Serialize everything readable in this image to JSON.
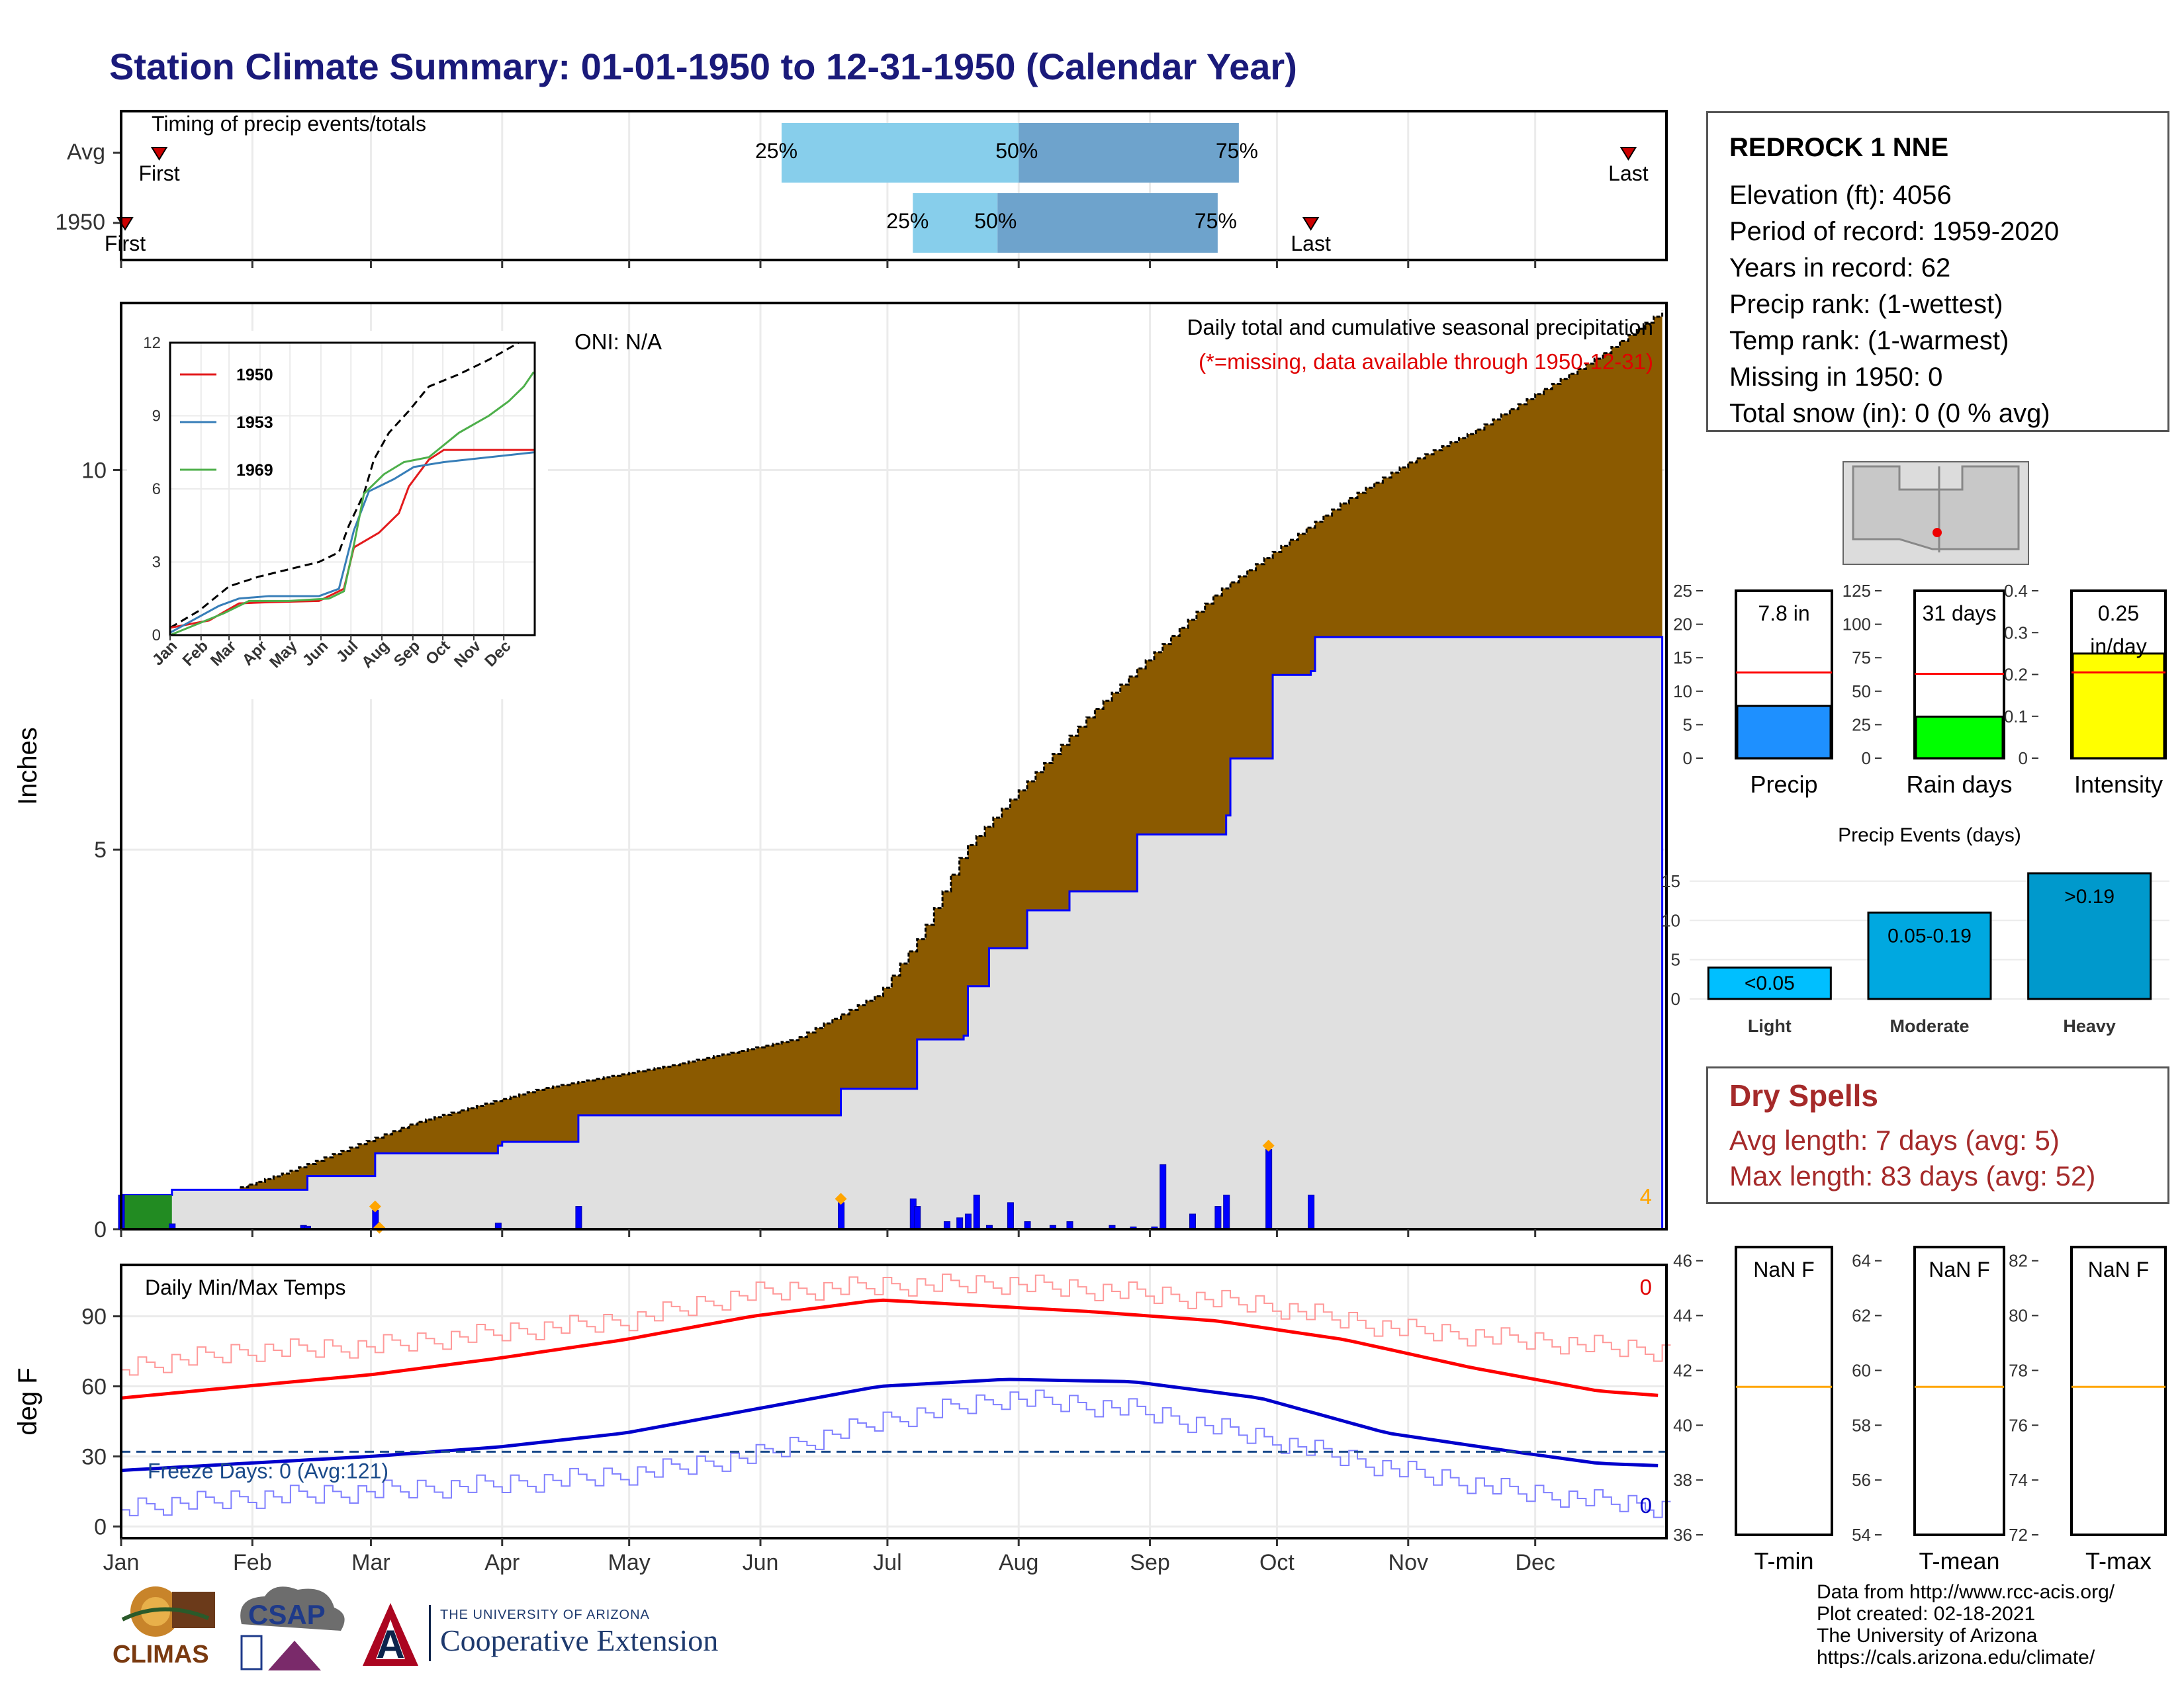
{
  "title": "Station Climate Summary: 01-01-1950 to 12-31-1950 (Calendar Year)",
  "colors": {
    "title": "#1a1a7a",
    "cumulative_fill": "#8b5a00",
    "avg_fill": "#e0e0e0",
    "daily_bars": "#0000ff",
    "tmax": "#ff0000",
    "tmin": "#0000cc",
    "dry_spells": "#a52a2a",
    "q_light": "#87ceeb",
    "q_dark": "#6ea3cc"
  },
  "station": {
    "name": "REDROCK 1 NNE",
    "lines": [
      "Elevation (ft): 4056",
      "Period of record: 1959-2020",
      "Years in record: 62",
      "Precip rank:  (1-wettest)",
      "Temp rank:  (1-warmest)",
      "Missing in 1950: 0",
      "Total snow (in): 0 (0 % avg)"
    ]
  },
  "dry_spells": {
    "title": "Dry Spells",
    "avg": "Avg length: 7 days (avg: 5)",
    "max": "Max length: 83 days (avg: 52)"
  },
  "credits": [
    "Data from http://www.rcc-acis.org/",
    "Plot created: 02-18-2021",
    "The University of Arizona",
    "https://cals.arizona.edu/climate/"
  ],
  "logos": {
    "climas": "CLIMAS",
    "csap": "CSAP",
    "ua_line1": "THE UNIVERSITY OF ARIZONA",
    "ua_line2": "Cooperative Extension",
    "ua_letter": "A"
  },
  "months": [
    "Jan",
    "Feb",
    "Mar",
    "Apr",
    "May",
    "Jun",
    "Jul",
    "Aug",
    "Sep",
    "Oct",
    "Nov",
    "Dec"
  ],
  "chart_data": [
    {
      "type": "bar",
      "title": "Timing of precip events/totals",
      "rows": [
        {
          "label": "Avg",
          "first_doy": 10,
          "q25_doy": 157,
          "q50_doy": 213,
          "q75_doy": 265,
          "last_doy": 357,
          "labels": [
            "First",
            "25%",
            "50%",
            "75%",
            "Last"
          ]
        },
        {
          "label": "1950",
          "first_doy": 1,
          "q25_doy": 188,
          "q50_doy": 208,
          "q75_doy": 260,
          "last_doy": 282,
          "labels": [
            "First",
            "25%",
            "50%",
            "75%",
            "Last"
          ]
        }
      ]
    },
    {
      "type": "area",
      "title": "Daily total and cumulative seasonal precipitation",
      "subtitle": "(*=missing, data available through 1950-12-31)",
      "annotation": "ONI: N/A",
      "ylabel": "Inches",
      "ylim": [
        0,
        12.2
      ],
      "yticks": [
        0,
        5,
        10
      ],
      "corner_count": "4",
      "avg_cumulative": [
        [
          1,
          0
        ],
        [
          15,
          0.3
        ],
        [
          40,
          0.75
        ],
        [
          70,
          1.4
        ],
        [
          100,
          1.85
        ],
        [
          130,
          2.15
        ],
        [
          160,
          2.5
        ],
        [
          180,
          3.1
        ],
        [
          190,
          3.9
        ],
        [
          200,
          5.0
        ],
        [
          215,
          5.9
        ],
        [
          230,
          6.8
        ],
        [
          245,
          7.6
        ],
        [
          260,
          8.4
        ],
        [
          275,
          9.0
        ],
        [
          290,
          9.6
        ],
        [
          305,
          10.1
        ],
        [
          320,
          10.5
        ],
        [
          335,
          11.0
        ],
        [
          350,
          11.5
        ],
        [
          365,
          12.1
        ]
      ],
      "year_cumulative": [
        [
          1,
          0.45
        ],
        [
          12,
          0.45
        ],
        [
          13,
          0.52
        ],
        [
          44,
          0.52
        ],
        [
          45,
          0.7
        ],
        [
          60,
          0.7
        ],
        [
          61,
          1.0
        ],
        [
          90,
          1.1
        ],
        [
          91,
          1.15
        ],
        [
          108,
          1.15
        ],
        [
          109,
          1.5
        ],
        [
          170,
          1.5
        ],
        [
          171,
          1.85
        ],
        [
          188,
          1.85
        ],
        [
          189,
          2.5
        ],
        [
          200,
          2.55
        ],
        [
          201,
          3.2
        ],
        [
          206,
          3.7
        ],
        [
          215,
          4.2
        ],
        [
          225,
          4.45
        ],
        [
          240,
          4.45
        ],
        [
          241,
          5.2
        ],
        [
          262,
          5.45
        ],
        [
          263,
          6.2
        ],
        [
          272,
          6.2
        ],
        [
          273,
          7.3
        ],
        [
          282,
          7.35
        ],
        [
          283,
          7.8
        ],
        [
          365,
          7.8
        ]
      ],
      "daily_bars": [
        [
          1,
          0.45
        ],
        [
          13,
          0.07
        ],
        [
          44,
          0.05
        ],
        [
          45,
          0.04
        ],
        [
          61,
          0.25
        ],
        [
          90,
          0.08
        ],
        [
          109,
          0.3
        ],
        [
          171,
          0.35
        ],
        [
          188,
          0.4
        ],
        [
          189,
          0.3
        ],
        [
          196,
          0.1
        ],
        [
          199,
          0.15
        ],
        [
          201,
          0.2
        ],
        [
          203,
          0.45
        ],
        [
          206,
          0.05
        ],
        [
          211,
          0.35
        ],
        [
          215,
          0.1
        ],
        [
          221,
          0.05
        ],
        [
          225,
          0.1
        ],
        [
          235,
          0.05
        ],
        [
          240,
          0.03
        ],
        [
          245,
          0.03
        ],
        [
          247,
          0.85
        ],
        [
          254,
          0.2
        ],
        [
          260,
          0.3
        ],
        [
          262,
          0.45
        ],
        [
          272,
          1.05
        ],
        [
          282,
          0.45
        ]
      ],
      "daily_markers": [
        [
          61,
          0.3
        ],
        [
          62,
          0.02
        ],
        [
          171,
          0.4
        ],
        [
          272,
          1.1
        ]
      ]
    },
    {
      "type": "line",
      "title": "inset: cumulative precipitation, comparison years",
      "ylim": [
        0,
        12
      ],
      "yticks": [
        0,
        3,
        6,
        9,
        12
      ],
      "series": [
        {
          "name": "",
          "color": "#000000",
          "values": [
            [
              1,
              0.3
            ],
            [
              30,
              1
            ],
            [
              60,
              2
            ],
            [
              90,
              2.4
            ],
            [
              120,
              2.7
            ],
            [
              150,
              3
            ],
            [
              170,
              3.4
            ],
            [
              180,
              4.5
            ],
            [
              195,
              5.8
            ],
            [
              205,
              7.2
            ],
            [
              220,
              8.3
            ],
            [
              240,
              9.2
            ],
            [
              260,
              10.2
            ],
            [
              290,
              10.7
            ],
            [
              320,
              11.3
            ],
            [
              350,
              12
            ]
          ]
        },
        {
          "name": "1950",
          "color": "#e31a1c",
          "values": [
            [
              1,
              0.3
            ],
            [
              40,
              0.6
            ],
            [
              70,
              1.3
            ],
            [
              100,
              1.35
            ],
            [
              150,
              1.4
            ],
            [
              175,
              1.9
            ],
            [
              185,
              3.6
            ],
            [
              210,
              4.2
            ],
            [
              230,
              5
            ],
            [
              240,
              6.1
            ],
            [
              260,
              7.2
            ],
            [
              275,
              7.6
            ],
            [
              365,
              7.6
            ]
          ]
        },
        {
          "name": "1953",
          "color": "#377eb8",
          "values": [
            [
              1,
              0.1
            ],
            [
              50,
              1.2
            ],
            [
              70,
              1.5
            ],
            [
              100,
              1.6
            ],
            [
              150,
              1.6
            ],
            [
              170,
              1.9
            ],
            [
              185,
              4.3
            ],
            [
              200,
              5.9
            ],
            [
              225,
              6.4
            ],
            [
              245,
              6.9
            ],
            [
              275,
              7.1
            ],
            [
              365,
              7.5
            ]
          ]
        },
        {
          "name": "1969",
          "color": "#4daf4a",
          "values": [
            [
              1,
              0
            ],
            [
              55,
              0.9
            ],
            [
              80,
              1.4
            ],
            [
              120,
              1.4
            ],
            [
              160,
              1.5
            ],
            [
              175,
              1.8
            ],
            [
              185,
              3.7
            ],
            [
              195,
              5.8
            ],
            [
              215,
              6.6
            ],
            [
              235,
              7.1
            ],
            [
              260,
              7.3
            ],
            [
              290,
              8.3
            ],
            [
              320,
              9
            ],
            [
              340,
              9.6
            ],
            [
              355,
              10.2
            ],
            [
              365,
              10.8
            ]
          ]
        }
      ]
    },
    {
      "type": "line",
      "title": "Daily Min/Max Temps",
      "ylabel": "deg F",
      "ylim": [
        -5,
        112
      ],
      "yticks": [
        0,
        30,
        60,
        90
      ],
      "freeze_line": 32,
      "freeze_label": "Freeze Days: 0 (Avg:121)",
      "tmax_count": "0",
      "tmin_count": "0",
      "series": [
        {
          "name": "",
          "color": "#ff0000",
          "values": [
            [
              1,
              55
            ],
            [
              30,
              60
            ],
            [
              60,
              65
            ],
            [
              90,
              72
            ],
            [
              120,
              80
            ],
            [
              150,
              90
            ],
            [
              180,
              97
            ],
            [
              200,
              95
            ],
            [
              230,
              92
            ],
            [
              260,
              88
            ],
            [
              290,
              80
            ],
            [
              320,
              68
            ],
            [
              350,
              58
            ],
            [
              365,
              56
            ]
          ]
        },
        {
          "name": "",
          "color": "#0000cc",
          "values": [
            [
              1,
              24
            ],
            [
              30,
              27
            ],
            [
              60,
              30
            ],
            [
              90,
              34
            ],
            [
              120,
              40
            ],
            [
              150,
              50
            ],
            [
              180,
              60
            ],
            [
              210,
              63
            ],
            [
              240,
              62
            ],
            [
              270,
              55
            ],
            [
              300,
              40
            ],
            [
              330,
              32
            ],
            [
              350,
              27
            ],
            [
              365,
              26
            ]
          ]
        },
        {
          "name": "",
          "color": "#ff9999",
          "values": [
            [
              1,
              68
            ],
            [
              30,
              75
            ],
            [
              60,
              77
            ],
            [
              90,
              83
            ],
            [
              120,
              88
            ],
            [
              150,
              100
            ],
            [
              180,
              103
            ],
            [
              210,
              104
            ],
            [
              240,
              100
            ],
            [
              270,
              95
            ],
            [
              300,
              85
            ],
            [
              330,
              80
            ],
            [
              365,
              75
            ]
          ]
        },
        {
          "name": "",
          "color": "#8080ff",
          "values": [
            [
              1,
              8
            ],
            [
              30,
              12
            ],
            [
              60,
              15
            ],
            [
              90,
              18
            ],
            [
              120,
              22
            ],
            [
              150,
              30
            ],
            [
              180,
              45
            ],
            [
              210,
              55
            ],
            [
              240,
              50
            ],
            [
              270,
              38
            ],
            [
              300,
              25
            ],
            [
              330,
              15
            ],
            [
              365,
              8
            ]
          ]
        }
      ]
    },
    {
      "type": "bar",
      "title": "",
      "categories": [
        "Precip"
      ],
      "values": [
        7.8
      ],
      "label": "7.8 in",
      "avg_line": 12.8,
      "ylim": [
        0,
        25
      ],
      "yticks": [
        0,
        5,
        10,
        15,
        20,
        25
      ],
      "color": "#1e90ff"
    },
    {
      "type": "bar",
      "title": "",
      "categories": [
        "Rain days"
      ],
      "values": [
        31
      ],
      "label": "31 days",
      "avg_line": 63,
      "ylim": [
        0,
        125
      ],
      "yticks": [
        0,
        25,
        50,
        75,
        100,
        125
      ],
      "color": "#00ff00"
    },
    {
      "type": "bar",
      "title": "",
      "categories": [
        "Intensity"
      ],
      "values": [
        0.25
      ],
      "label": "0.25 in/day",
      "avg_line": 0.205,
      "ylim": [
        0,
        0.4
      ],
      "yticks": [
        0.0,
        0.1,
        0.2,
        0.3,
        0.4
      ],
      "color": "#ffff00"
    },
    {
      "type": "bar",
      "title": "Precip Events (days)",
      "categories": [
        "Light",
        "Moderate",
        "Heavy"
      ],
      "bar_labels": [
        "<0.05",
        "0.05-0.19",
        ">0.19"
      ],
      "values": [
        4,
        11,
        16
      ],
      "ylim": [
        0,
        16
      ],
      "yticks": [
        0,
        5,
        10,
        15
      ],
      "colors": [
        "#00bfff",
        "#00a8e0",
        "#0099cc"
      ]
    },
    {
      "type": "bar",
      "title": "",
      "categories": [
        "T-min"
      ],
      "label": "NaN F",
      "avg_line": 41.4,
      "ylim": [
        36,
        46.5
      ],
      "yticks": [
        36,
        38,
        40,
        42,
        44,
        46
      ]
    },
    {
      "type": "bar",
      "title": "",
      "categories": [
        "T-mean"
      ],
      "label": "NaN F",
      "avg_line": 59.4,
      "ylim": [
        54,
        64.5
      ],
      "yticks": [
        54,
        56,
        58,
        60,
        62,
        64
      ]
    },
    {
      "type": "bar",
      "title": "",
      "categories": [
        "T-max"
      ],
      "label": "NaN F",
      "avg_line": 77.4,
      "ylim": [
        72,
        82.5
      ],
      "yticks": [
        72,
        74,
        76,
        78,
        80,
        82
      ]
    }
  ]
}
